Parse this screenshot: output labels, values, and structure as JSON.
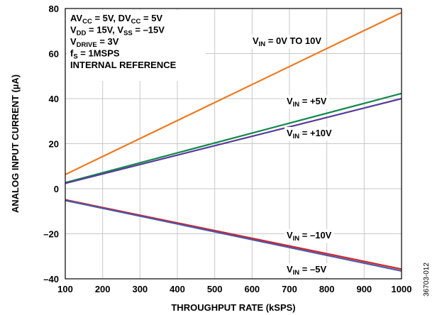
{
  "chart_data": {
    "type": "line",
    "xlabel": "THROUGHPUT RATE (kSPS)",
    "ylabel": "ANALOG INPUT CURRENT (µA)",
    "xlim": [
      100,
      1000
    ],
    "ylim": [
      -40,
      80
    ],
    "xticks": [
      "100",
      "200",
      "300",
      "400",
      "500",
      "600",
      "700",
      "800",
      "900",
      "1000"
    ],
    "yticks": [
      "80",
      "60",
      "40",
      "20",
      "0",
      "–20",
      "–40"
    ],
    "grid": true,
    "conditions": [
      [
        {
          "t": "AV"
        },
        {
          "t": "CC",
          "sub": true
        },
        {
          "t": " = 5V, DV"
        },
        {
          "t": "CC",
          "sub": true
        },
        {
          "t": " = 5V"
        }
      ],
      [
        {
          "t": "V"
        },
        {
          "t": "DD",
          "sub": true
        },
        {
          "t": " = 15V, V"
        },
        {
          "t": "SS",
          "sub": true
        },
        {
          "t": " = –15V"
        }
      ],
      [
        {
          "t": "V"
        },
        {
          "t": "DRIVE",
          "sub": true
        },
        {
          "t": " = 3V"
        }
      ],
      [
        {
          "t": "f"
        },
        {
          "t": "S",
          "sub": true
        },
        {
          "t": " = 1MSPS"
        }
      ],
      [
        {
          "t": "INTERNAL REFERENCE"
        }
      ]
    ],
    "series": [
      {
        "name": "V_IN = 0V TO 10V",
        "color": "#f07a22",
        "x": [
          100,
          1000
        ],
        "y": [
          6.3,
          78.2
        ],
        "label": [
          {
            "t": "V"
          },
          {
            "t": "IN",
            "sub": true
          },
          {
            "t": " = 0V TO 10V"
          }
        ]
      },
      {
        "name": "V_IN = +5V",
        "color": "#12894a",
        "x": [
          100,
          1000
        ],
        "y": [
          2.7,
          42.3
        ],
        "label": [
          {
            "t": "V"
          },
          {
            "t": "IN",
            "sub": true
          },
          {
            "t": " = +5V"
          }
        ]
      },
      {
        "name": "V_IN = +10V",
        "color": "#5a3a9c",
        "x": [
          100,
          1000
        ],
        "y": [
          2.4,
          40.0
        ],
        "label": [
          {
            "t": "V"
          },
          {
            "t": "IN",
            "sub": true
          },
          {
            "t": " = +10V"
          }
        ]
      },
      {
        "name": "V_IN = –10V",
        "color": "#d2232a",
        "x": [
          100,
          1000
        ],
        "y": [
          -4.9,
          -35.7
        ],
        "label": [
          {
            "t": "V"
          },
          {
            "t": "IN",
            "sub": true
          },
          {
            "t": " = –10V"
          }
        ]
      },
      {
        "name": "V_IN = –5V",
        "color": "#4a57a8",
        "x": [
          100,
          1000
        ],
        "y": [
          -5.2,
          -36.5
        ],
        "label": [
          {
            "t": "V"
          },
          {
            "t": "IN",
            "sub": true
          },
          {
            "t": " = –5V"
          }
        ]
      }
    ],
    "figure_id": "36703-012"
  }
}
